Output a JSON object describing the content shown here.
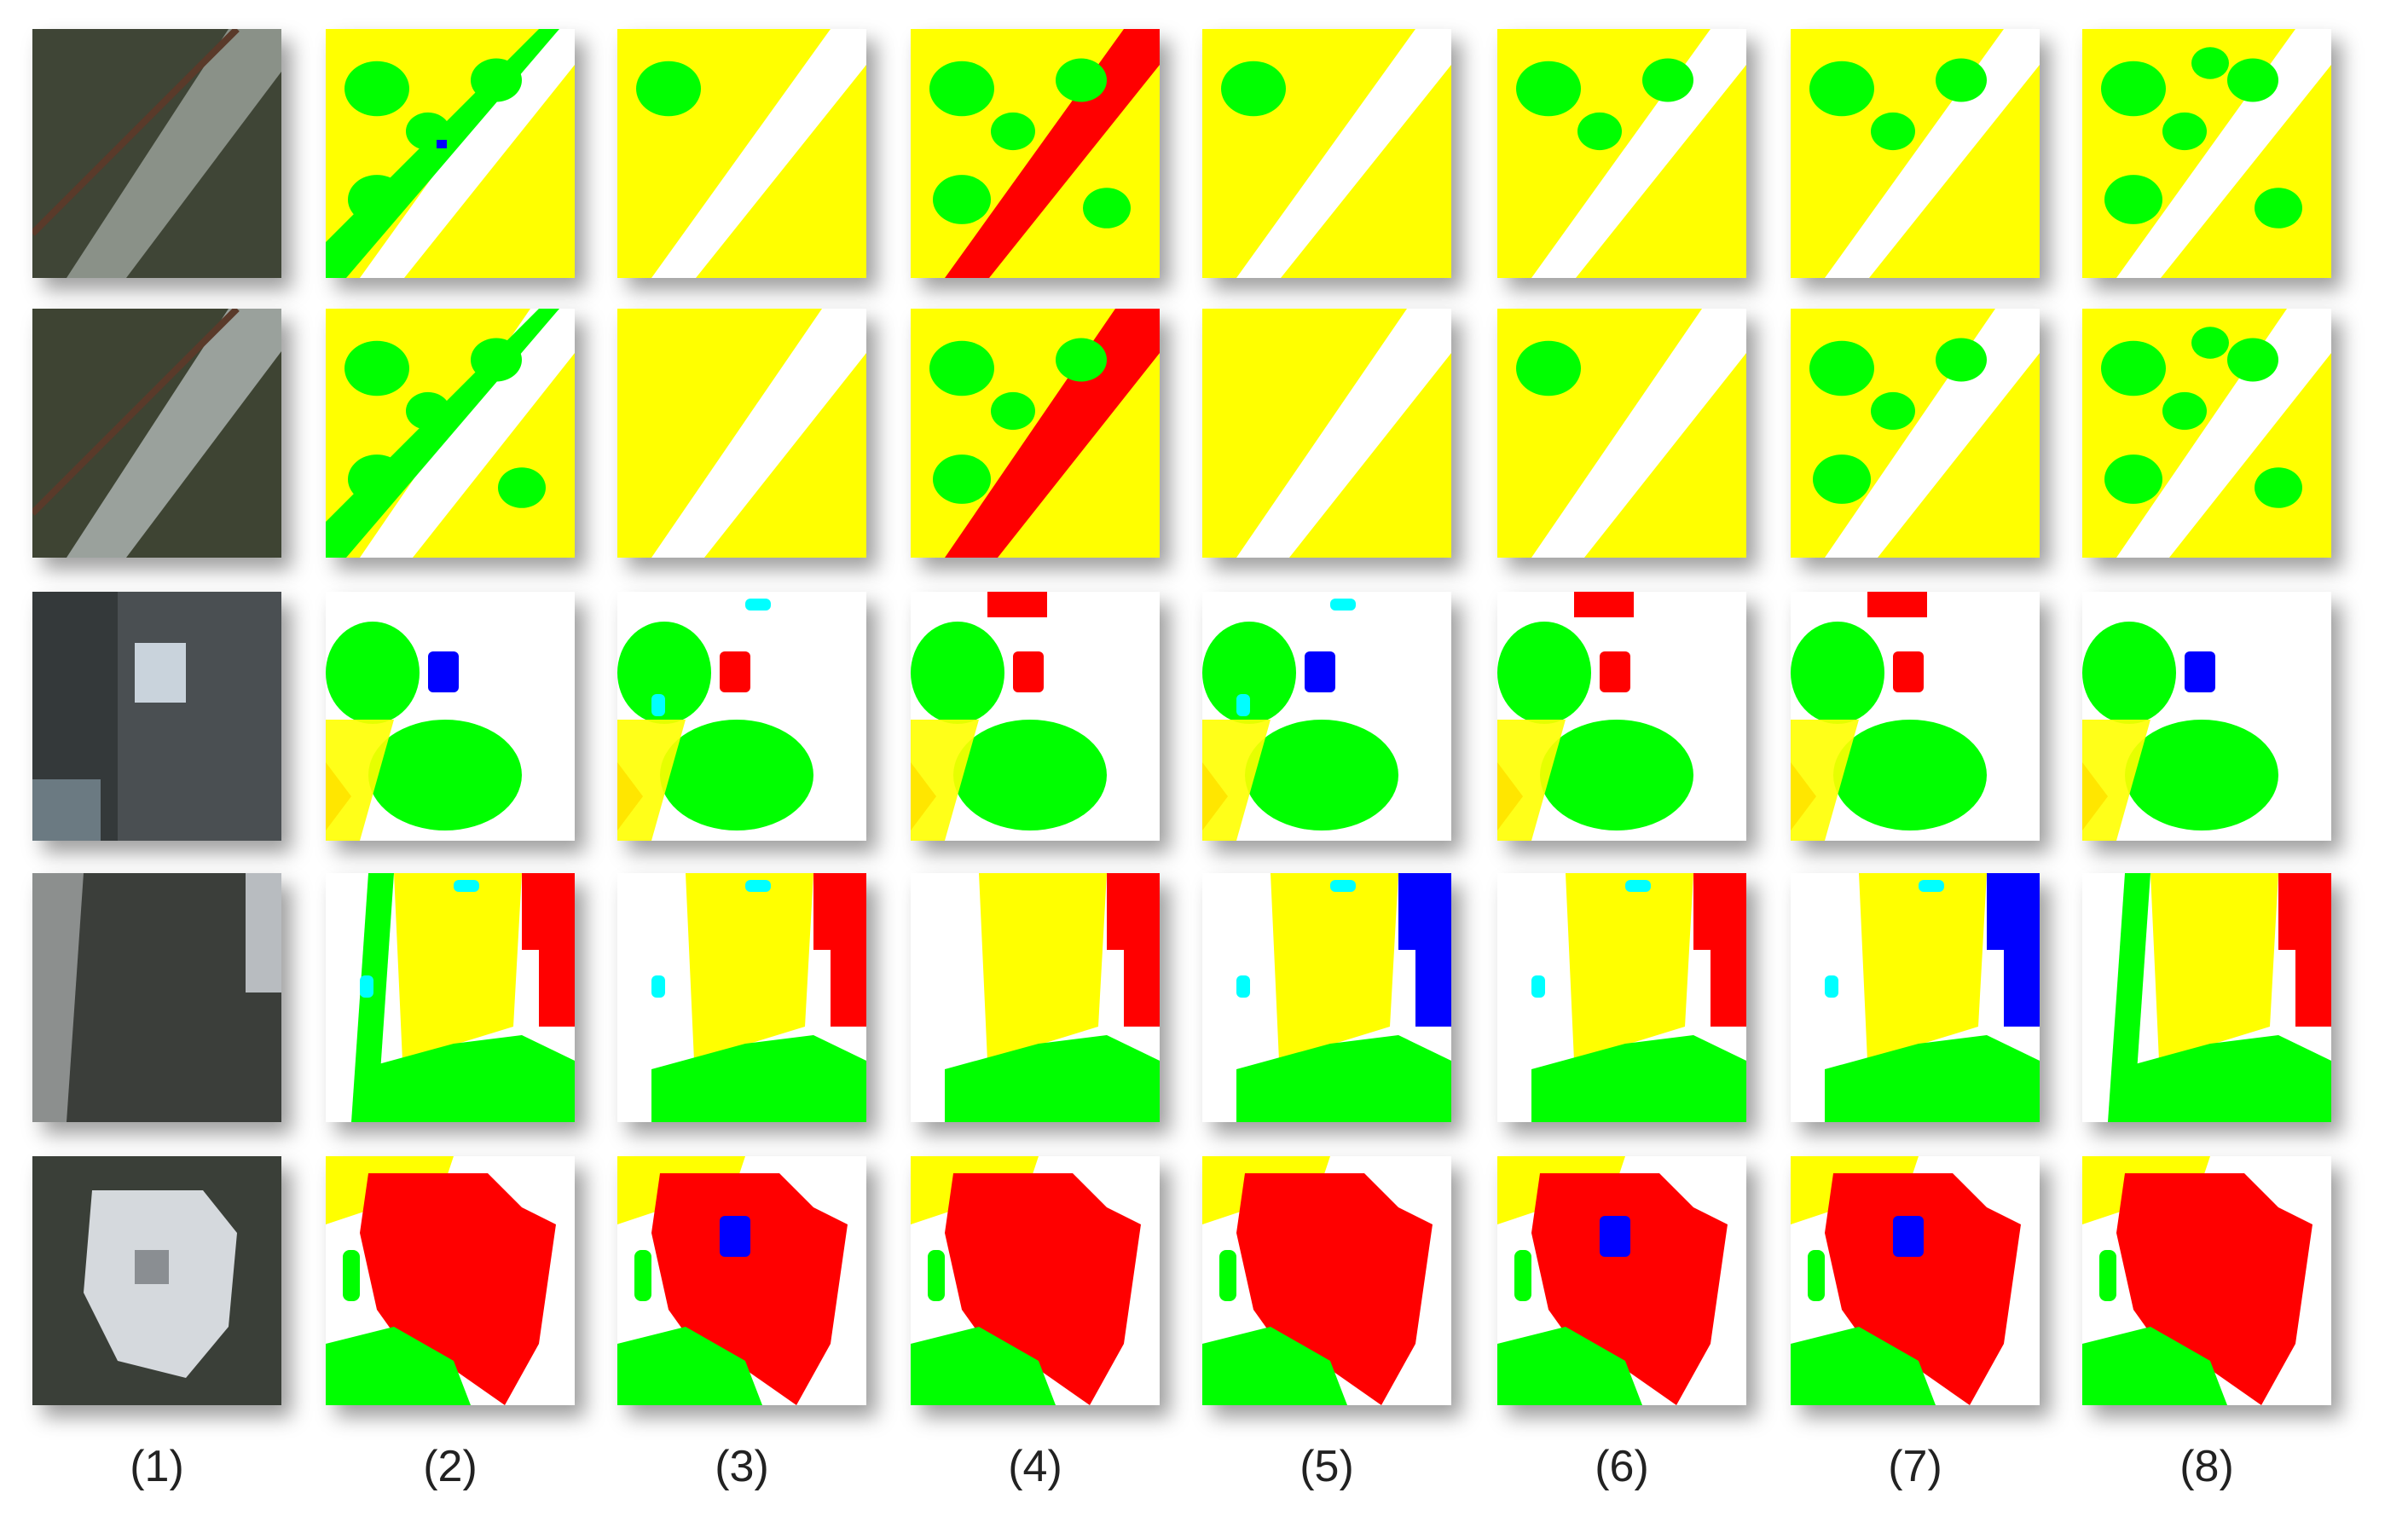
{
  "figure": {
    "column_labels": [
      "(1)",
      "(2)",
      "(3)",
      "(4)",
      "(5)",
      "(6)",
      "(7)",
      "(8)"
    ],
    "rows": 5,
    "columns": 8
  },
  "legend_colors": {
    "impervious_surface": "#ffffff",
    "building": "#ff0000",
    "low_vegetation": "#ffff00",
    "tree": "#00ff00",
    "car": "#0000ff",
    "clutter": "#00ffff"
  },
  "rows": [
    {
      "aerial": {
        "bg": "#3f4536",
        "accent": "#8a9188",
        "type": "path"
      },
      "tiles": [
        {
          "bg": "#ffff00",
          "shapes": [
            {
              "k": "band",
              "c": "#ffffff",
              "w": 62
            },
            {
              "k": "band2",
              "c": "#00ff00",
              "w": 24
            },
            {
              "k": "blob",
              "c": "#00ff00",
              "n": 4
            },
            {
              "k": "dot",
              "c": "#0000ff"
            }
          ]
        },
        {
          "bg": "#ffff00",
          "shapes": [
            {
              "k": "band",
              "c": "#ffffff",
              "w": 62
            },
            {
              "k": "blob",
              "c": "#00ff00",
              "n": 1
            }
          ]
        },
        {
          "bg": "#ffff00",
          "shapes": [
            {
              "k": "band",
              "c": "#ff0000",
              "w": 62
            },
            {
              "k": "blob",
              "c": "#00ff00",
              "n": 5
            }
          ]
        },
        {
          "bg": "#ffff00",
          "shapes": [
            {
              "k": "band",
              "c": "#ffffff",
              "w": 62
            },
            {
              "k": "blob",
              "c": "#00ff00",
              "n": 1
            }
          ]
        },
        {
          "bg": "#ffff00",
          "shapes": [
            {
              "k": "band",
              "c": "#ffffff",
              "w": 62
            },
            {
              "k": "blob",
              "c": "#00ff00",
              "n": 3
            }
          ]
        },
        {
          "bg": "#ffff00",
          "shapes": [
            {
              "k": "band",
              "c": "#ffffff",
              "w": 62
            },
            {
              "k": "blob",
              "c": "#00ff00",
              "n": 3
            }
          ]
        },
        {
          "bg": "#ffff00",
          "shapes": [
            {
              "k": "band",
              "c": "#ffffff",
              "w": 62
            },
            {
              "k": "blob",
              "c": "#00ff00",
              "n": 6
            }
          ]
        }
      ]
    },
    {
      "aerial": {
        "bg": "#3e4433",
        "accent": "#9aa19c",
        "type": "path"
      },
      "tiles": [
        {
          "bg": "#ffff00",
          "shapes": [
            {
              "k": "band",
              "c": "#ffffff",
              "w": 72
            },
            {
              "k": "band2",
              "c": "#00ff00",
              "w": 24
            },
            {
              "k": "blob",
              "c": "#00ff00",
              "n": 5
            }
          ]
        },
        {
          "bg": "#ffff00",
          "shapes": [
            {
              "k": "band",
              "c": "#ffffff",
              "w": 72
            }
          ]
        },
        {
          "bg": "#ffff00",
          "shapes": [
            {
              "k": "band",
              "c": "#ff0000",
              "w": 72
            },
            {
              "k": "blob",
              "c": "#00ff00",
              "n": 4
            }
          ]
        },
        {
          "bg": "#ffff00",
          "shapes": [
            {
              "k": "band",
              "c": "#ffffff",
              "w": 72
            }
          ]
        },
        {
          "bg": "#ffff00",
          "shapes": [
            {
              "k": "band",
              "c": "#ffffff",
              "w": 72
            },
            {
              "k": "blob",
              "c": "#00ff00",
              "n": 1
            }
          ]
        },
        {
          "bg": "#ffff00",
          "shapes": [
            {
              "k": "band",
              "c": "#ffffff",
              "w": 72
            },
            {
              "k": "blob",
              "c": "#00ff00",
              "n": 4
            }
          ]
        },
        {
          "bg": "#ffff00",
          "shapes": [
            {
              "k": "band",
              "c": "#ffffff",
              "w": 72
            },
            {
              "k": "blob",
              "c": "#00ff00",
              "n": 6
            }
          ]
        }
      ]
    },
    {
      "aerial": {
        "bg": "#34393a",
        "accent": "#c9d3dc",
        "type": "courtyard"
      },
      "tiles": [
        {
          "bg": "#ffffff",
          "shapes": [
            {
              "k": "bigtree",
              "c": "#00ff00"
            },
            {
              "k": "car",
              "c": "#0000ff"
            },
            {
              "k": "corner",
              "c": "#ff0000"
            },
            {
              "k": "lowveg",
              "c": "#ffff00"
            }
          ]
        },
        {
          "bg": "#ffffff",
          "shapes": [
            {
              "k": "bigtree",
              "c": "#00ff00"
            },
            {
              "k": "car",
              "c": "#ff0000"
            },
            {
              "k": "corner",
              "c": "#ff0000"
            },
            {
              "k": "lowveg",
              "c": "#ffff00"
            },
            {
              "k": "clutter",
              "c": "#00ffff"
            }
          ]
        },
        {
          "bg": "#ffffff",
          "shapes": [
            {
              "k": "bigtree",
              "c": "#00ff00"
            },
            {
              "k": "car",
              "c": "#ff0000"
            },
            {
              "k": "corner",
              "c": "#ff0000"
            },
            {
              "k": "lowveg",
              "c": "#ffff00"
            },
            {
              "k": "topred",
              "c": "#ff0000"
            }
          ]
        },
        {
          "bg": "#ffffff",
          "shapes": [
            {
              "k": "bigtree",
              "c": "#00ff00"
            },
            {
              "k": "car",
              "c": "#0000ff"
            },
            {
              "k": "corner",
              "c": "#ff0000"
            },
            {
              "k": "lowveg",
              "c": "#ffff00"
            },
            {
              "k": "clutter",
              "c": "#00ffff"
            }
          ]
        },
        {
          "bg": "#ffffff",
          "shapes": [
            {
              "k": "bigtree",
              "c": "#00ff00"
            },
            {
              "k": "car",
              "c": "#ff0000"
            },
            {
              "k": "corner",
              "c": "#ff0000"
            },
            {
              "k": "lowveg",
              "c": "#ffff00"
            },
            {
              "k": "topred",
              "c": "#ff0000"
            }
          ]
        },
        {
          "bg": "#ffffff",
          "shapes": [
            {
              "k": "bigtree",
              "c": "#00ff00"
            },
            {
              "k": "car",
              "c": "#ff0000"
            },
            {
              "k": "corner",
              "c": "#ff0000"
            },
            {
              "k": "lowveg",
              "c": "#ffff00"
            },
            {
              "k": "topred",
              "c": "#ff0000"
            }
          ]
        },
        {
          "bg": "#ffffff",
          "shapes": [
            {
              "k": "bigtree",
              "c": "#00ff00"
            },
            {
              "k": "car",
              "c": "#0000ff"
            },
            {
              "k": "corner",
              "c": "#ff0000"
            },
            {
              "k": "lowveg",
              "c": "#ffff00"
            }
          ]
        }
      ]
    },
    {
      "aerial": {
        "bg": "#3b3e3a",
        "accent": "#8c8f8e",
        "type": "street"
      },
      "tiles": [
        {
          "bg": "#ffffff",
          "shapes": [
            {
              "k": "field",
              "c": "#ffff00"
            },
            {
              "k": "vband",
              "c": "#00ff00"
            },
            {
              "k": "house",
              "c": "#ff0000"
            },
            {
              "k": "bottomtree",
              "c": "#00ff00"
            },
            {
              "k": "clutter",
              "c": "#00ffff"
            }
          ]
        },
        {
          "bg": "#ffffff",
          "shapes": [
            {
              "k": "field",
              "c": "#ffff00"
            },
            {
              "k": "bottomtree",
              "c": "#00ff00"
            },
            {
              "k": "house",
              "c": "#ff0000"
            },
            {
              "k": "clutter",
              "c": "#00ffff"
            }
          ]
        },
        {
          "bg": "#ffffff",
          "shapes": [
            {
              "k": "field",
              "c": "#ffff00"
            },
            {
              "k": "bottomtree",
              "c": "#00ff00"
            },
            {
              "k": "house",
              "c": "#ff0000"
            }
          ]
        },
        {
          "bg": "#ffffff",
          "shapes": [
            {
              "k": "field",
              "c": "#ffff00"
            },
            {
              "k": "bottomtree",
              "c": "#00ff00"
            },
            {
              "k": "house",
              "c": "#0000ff"
            },
            {
              "k": "clutter",
              "c": "#00ffff"
            }
          ]
        },
        {
          "bg": "#ffffff",
          "shapes": [
            {
              "k": "field",
              "c": "#ffff00"
            },
            {
              "k": "bottomtree",
              "c": "#00ff00"
            },
            {
              "k": "house",
              "c": "#ff0000"
            },
            {
              "k": "clutter",
              "c": "#00ffff"
            }
          ]
        },
        {
          "bg": "#ffffff",
          "shapes": [
            {
              "k": "field",
              "c": "#ffff00"
            },
            {
              "k": "bottomtree",
              "c": "#00ff00"
            },
            {
              "k": "house",
              "c": "#0000ff"
            },
            {
              "k": "clutter",
              "c": "#00ffff"
            }
          ]
        },
        {
          "bg": "#ffffff",
          "shapes": [
            {
              "k": "field",
              "c": "#ffff00"
            },
            {
              "k": "vband",
              "c": "#00ff00"
            },
            {
              "k": "bottomtree",
              "c": "#00ff00"
            },
            {
              "k": "house",
              "c": "#ff0000"
            }
          ]
        }
      ]
    },
    {
      "aerial": {
        "bg": "#3a3f38",
        "accent": "#d5d9dd",
        "type": "building"
      },
      "tiles": [
        {
          "bg": "#ffffff",
          "shapes": [
            {
              "k": "lowtop",
              "c": "#ffff00"
            },
            {
              "k": "roof",
              "c": "#ff0000"
            },
            {
              "k": "bottomleft",
              "c": "#00ff00"
            },
            {
              "k": "leftstrip",
              "c": "#00ff00"
            }
          ]
        },
        {
          "bg": "#ffffff",
          "shapes": [
            {
              "k": "lowtop",
              "c": "#ffff00"
            },
            {
              "k": "roof",
              "c": "#ff0000"
            },
            {
              "k": "bottomleft",
              "c": "#00ff00"
            },
            {
              "k": "leftstrip",
              "c": "#00ff00"
            },
            {
              "k": "car",
              "c": "#0000ff"
            }
          ]
        },
        {
          "bg": "#ffffff",
          "shapes": [
            {
              "k": "lowtop",
              "c": "#ffff00"
            },
            {
              "k": "roof",
              "c": "#ff0000"
            },
            {
              "k": "bottomleft",
              "c": "#00ff00"
            },
            {
              "k": "leftstrip",
              "c": "#00ff00"
            }
          ]
        },
        {
          "bg": "#ffffff",
          "shapes": [
            {
              "k": "lowtop",
              "c": "#ffff00"
            },
            {
              "k": "roof",
              "c": "#ff0000"
            },
            {
              "k": "bottomleft",
              "c": "#00ff00"
            },
            {
              "k": "leftstrip",
              "c": "#00ff00"
            }
          ]
        },
        {
          "bg": "#ffffff",
          "shapes": [
            {
              "k": "lowtop",
              "c": "#ffff00"
            },
            {
              "k": "roof",
              "c": "#ff0000"
            },
            {
              "k": "bottomleft",
              "c": "#00ff00"
            },
            {
              "k": "leftstrip",
              "c": "#00ff00"
            },
            {
              "k": "car",
              "c": "#0000ff"
            }
          ]
        },
        {
          "bg": "#ffffff",
          "shapes": [
            {
              "k": "lowtop",
              "c": "#ffff00"
            },
            {
              "k": "roof",
              "c": "#ff0000"
            },
            {
              "k": "bottomleft",
              "c": "#00ff00"
            },
            {
              "k": "leftstrip",
              "c": "#00ff00"
            },
            {
              "k": "car",
              "c": "#0000ff"
            }
          ]
        },
        {
          "bg": "#ffffff",
          "shapes": [
            {
              "k": "lowtop",
              "c": "#ffff00"
            },
            {
              "k": "roof",
              "c": "#ff0000"
            },
            {
              "k": "bottomleft",
              "c": "#00ff00"
            },
            {
              "k": "leftstrip",
              "c": "#00ff00"
            }
          ]
        }
      ]
    }
  ]
}
